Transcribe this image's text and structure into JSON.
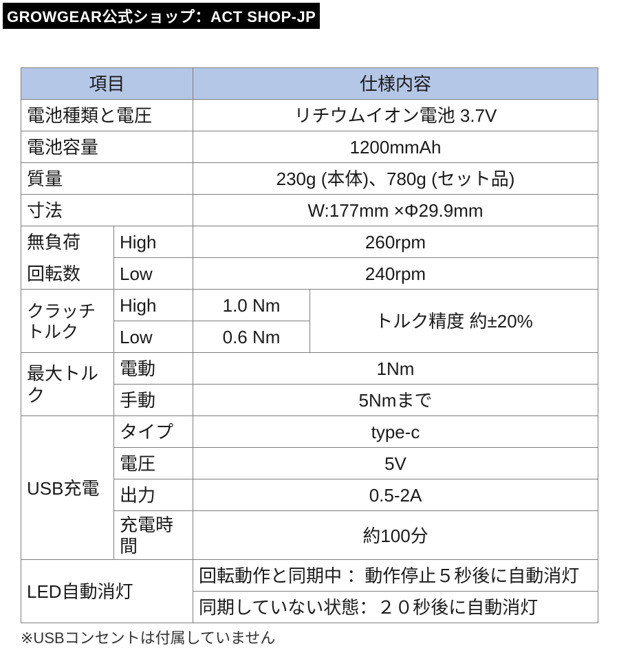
{
  "watermark": "GROWGEAR公式ショップ：ACT SHOP-JP",
  "colors": {
    "header_bg": "#b4c7e7",
    "border": "#7e7e7e",
    "watermark_bg": "#000000",
    "watermark_fg": "#ffffff",
    "text": "#1a1a1a",
    "page_bg": "#ffffff"
  },
  "typography": {
    "cell_fontsize": 26,
    "note_fontsize": 22,
    "watermark_fontsize": 22
  },
  "table": {
    "header_item": "項目",
    "header_spec": "仕様内容",
    "rows": {
      "battery_type": {
        "label": "電池種類と電圧",
        "value": "リチウムイオン電池 3.7V"
      },
      "capacity": {
        "label": "電池容量",
        "value": "1200mmAh"
      },
      "mass": {
        "label": "質量",
        "value": "230g (本体)、780g (セット品)"
      },
      "dimension": {
        "label": "寸法",
        "value": "W:177mm ×Φ29.9mm"
      },
      "noload": {
        "label1": "無負荷",
        "label2": "回転数",
        "high_label": "High",
        "high_value": "260rpm",
        "low_label": "Low",
        "low_value": "240rpm"
      },
      "clutch": {
        "label": "クラッチトルク",
        "high_label": "High",
        "high_value": "1.0 Nm",
        "low_label": "Low",
        "low_value": "0.6 Nm",
        "accuracy": "トルク精度 約±20%"
      },
      "maxtorque": {
        "label": "最大トルク",
        "elec_label": "電動",
        "elec_value": "1Nm",
        "manu_label": "手動",
        "manu_value": "5Nmまで"
      },
      "usb": {
        "label": "USB充電",
        "type_label": "タイプ",
        "type_value": "type-c",
        "volt_label": "電圧",
        "volt_value": "5V",
        "out_label": "出力",
        "out_value": "0.5-2A",
        "time_label": "充電時間",
        "time_value": "約100分"
      },
      "led": {
        "label": "LED自動消灯",
        "line1": "回転動作と同期中 ：動作停止５秒後に自動消灯",
        "line2": "同期していない状態：２０秒後に自動消灯"
      }
    },
    "footnote": "※USBコンセントは付属していません"
  }
}
